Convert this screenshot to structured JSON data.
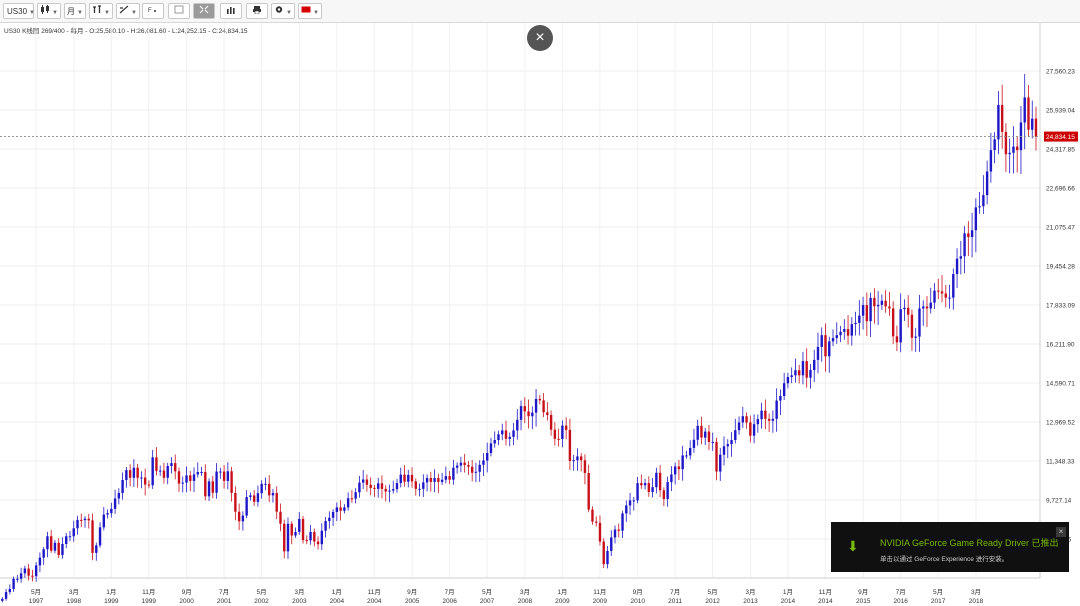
{
  "toolbar": {
    "symbol": "US30",
    "period": "月",
    "icons": [
      "candle-type-icon",
      "period-icon",
      "indicator-icon",
      "draw-tools-icon",
      "fibonacci-icon",
      "layout-icon",
      "fullscreen-icon",
      "volume-bars-icon",
      "print-icon",
      "settings-icon",
      "flag-icon"
    ]
  },
  "info_line": "US30  K线图 269/400 - 每月 - O:25,580.10 - H:26,081.60 - L:24,252.15 - C:24,834.15",
  "close_glyph": "×",
  "toast": {
    "title": "NVIDIA GeForce Game Ready Driver 已推出",
    "subtitle": "单击以通过 GeForce Experience 进行安装。",
    "close_glyph": "×"
  },
  "chart_data": {
    "type": "candlestick",
    "symbol": "US30",
    "interval": "每月",
    "ohlc_last": {
      "open": 25580.1,
      "high": 26081.6,
      "low": 24252.15,
      "close": 24834.15
    },
    "current_price_label": "24,834.15",
    "y_tick_labels": [
      "27,560.23",
      "25,939.04",
      "24,317.85",
      "22,696.66",
      "21,075.47",
      "19,454.28",
      "17,833.09",
      "16,211.90",
      "14,590.71",
      "12,969.52",
      "11,348.33",
      "9,727.14",
      "8,105.95"
    ],
    "ylim": [
      6484.76,
      29181.42
    ],
    "x_ticks": [
      {
        "m": "5月",
        "y": "1997",
        "t": 1997.33
      },
      {
        "m": "3月",
        "y": "1998",
        "t": 1998.17
      },
      {
        "m": "1月",
        "y": "1999",
        "t": 1999.0
      },
      {
        "m": "11月",
        "y": "1999",
        "t": 1999.83
      },
      {
        "m": "9月",
        "y": "2000",
        "t": 2000.67
      },
      {
        "m": "7月",
        "y": "2001",
        "t": 2001.5
      },
      {
        "m": "5月",
        "y": "2002",
        "t": 2002.33
      },
      {
        "m": "3月",
        "y": "2003",
        "t": 2003.17
      },
      {
        "m": "1月",
        "y": "2004",
        "t": 2004.0
      },
      {
        "m": "11月",
        "y": "2004",
        "t": 2004.83
      },
      {
        "m": "9月",
        "y": "2005",
        "t": 2005.67
      },
      {
        "m": "7月",
        "y": "2006",
        "t": 2006.5
      },
      {
        "m": "5月",
        "y": "2007",
        "t": 2007.33
      },
      {
        "m": "3月",
        "y": "2008",
        "t": 2008.17
      },
      {
        "m": "1月",
        "y": "2009",
        "t": 2009.0
      },
      {
        "m": "11月",
        "y": "2009",
        "t": 2009.83
      },
      {
        "m": "9月",
        "y": "2010",
        "t": 2010.67
      },
      {
        "m": "7月",
        "y": "2011",
        "t": 2011.5
      },
      {
        "m": "5月",
        "y": "2012",
        "t": 2012.33
      },
      {
        "m": "3月",
        "y": "2013",
        "t": 2013.17
      },
      {
        "m": "1月",
        "y": "2014",
        "t": 2014.0
      },
      {
        "m": "11月",
        "y": "2014",
        "t": 2014.83
      },
      {
        "m": "9月",
        "y": "2015",
        "t": 2015.67
      },
      {
        "m": "7月",
        "y": "2016",
        "t": 2016.5
      },
      {
        "m": "5月",
        "y": "2017",
        "t": 2017.33
      },
      {
        "m": "3月",
        "y": "2018",
        "t": 2018.17
      }
    ],
    "closes_start": "1996-08",
    "closes": [
      5620,
      5900,
      6030,
      6450,
      6450,
      6680,
      6880,
      6580,
      6560,
      7010,
      7330,
      7680,
      8220,
      7620,
      7950,
      7440,
      7900,
      8220,
      8220,
      8550,
      8900,
      8890,
      8950,
      8880,
      7530,
      7840,
      8590,
      9120,
      9180,
      9360,
      9790,
      10020,
      10560,
      10970,
      10650,
      11070,
      10650,
      10660,
      10370,
      10340,
      11500,
      10940,
      10950,
      10650,
      11140,
      11260,
      10920,
      10410,
      10450,
      10750,
      10520,
      10790,
      10890,
      10890,
      9880,
      10500,
      10030,
      10910,
      10910,
      10520,
      10920,
      10020,
      9240,
      8840,
      9080,
      9850,
      9920,
      9650,
      10010,
      10400,
      10400,
      9920,
      10020,
      9240,
      8740,
      7590,
      8740,
      8250,
      8400,
      8940,
      8060,
      8050,
      8400,
      8000,
      7890,
      8450,
      8850,
      8990,
      9230,
      9420,
      9280,
      9420,
      9800,
      9780,
      10050,
      10450,
      10580,
      10360,
      10230,
      10190,
      10420,
      10190,
      10080,
      10120,
      10180,
      10430,
      10780,
      10490,
      10770,
      10500,
      10190,
      10190,
      10460,
      10640,
      10480,
      10640,
      10480,
      10570,
      10720,
      10570,
      11070,
      11160,
      11280,
      11180,
      11110,
      10860,
      10900,
      11190,
      11370,
      11680,
      12080,
      12220,
      12460,
      12620,
      12270,
      12350,
      12620,
      13060,
      13630,
      13410,
      13210,
      13360,
      13930,
      13870,
      13370,
      13260,
      12650,
      12270,
      12260,
      12820,
      12640,
      11350,
      11380,
      11540,
      11380,
      10850,
      9330,
      8830,
      8780,
      8000,
      7060,
      7610,
      8170,
      8500,
      8450,
      9170,
      9500,
      9710,
      9710,
      10430,
      10340,
      10430,
      10060,
      10260,
      10860,
      10130,
      9770,
      10470,
      10790,
      11120,
      11010,
      11580,
      11580,
      11890,
      12230,
      12810,
      12320,
      12570,
      12140,
      12140,
      10910,
      11610,
      11960,
      12050,
      12220,
      12630,
      12950,
      13210,
      12950,
      12400,
      12880,
      13090,
      13440,
      13100,
      13020,
      13100,
      13860,
      14050,
      14580,
      14840,
      14910,
      15120,
      14910,
      15500,
      14810,
      15130,
      15550,
      16090,
      16580,
      15700,
      16320,
      16460,
      16580,
      16720,
      16830,
      16560,
      17040,
      17090,
      17390,
      17830,
      17160,
      18130,
      17780,
      17840,
      18010,
      17770,
      17690,
      16530,
      16280,
      17660,
      17720,
      17430,
      16470,
      16520,
      17690,
      17770,
      17690,
      17930,
      18430,
      18400,
      18310,
      18140,
      18140,
      19120,
      19760,
      19860,
      20810,
      20660,
      20940,
      21890,
      21940,
      22400,
      23380,
      24270,
      24720,
      26150,
      25030,
      24100,
      24160,
      24420,
      24270,
      25420,
      26460,
      25120,
      25580,
      24834
    ]
  }
}
